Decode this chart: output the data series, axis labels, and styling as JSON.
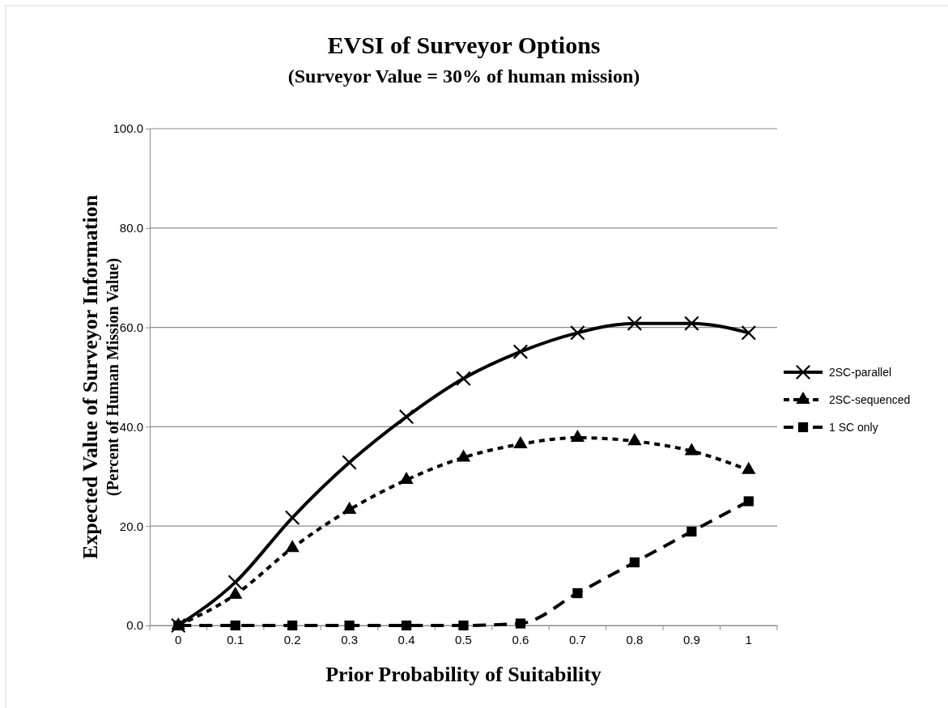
{
  "chart_data": {
    "type": "line",
    "title": "EVSI of Surveyor Options",
    "subtitle": "(Surveyor Value = 30% of human mission)",
    "xlabel": "Prior Probability of Suitability",
    "ylabel": "Expected Value of Surveyor Information\n(Percent of Human Mission Value)",
    "categories": [
      "0",
      "0.1",
      "0.2",
      "0.3",
      "0.4",
      "0.5",
      "0.6",
      "0.7",
      "0.8",
      "0.9",
      "1"
    ],
    "series": [
      {
        "name": "2SC-parallel",
        "color": "#000000",
        "marker": "cross",
        "line_style": "solid",
        "values": [
          0,
          8.7,
          21.7,
          32.8,
          42.0,
          49.7,
          55.1,
          58.9,
          60.8,
          60.8,
          58.9
        ]
      },
      {
        "name": "2SC-sequenced",
        "color": "#000000",
        "marker": "triangle",
        "line_style": "dashed",
        "values": [
          0,
          6.2,
          15.6,
          23.3,
          29.3,
          33.8,
          36.5,
          37.8,
          37.1,
          35.1,
          31.3
        ]
      },
      {
        "name": "1 SC only",
        "color": "#000000",
        "marker": "square",
        "line_style": "dashed",
        "values": [
          0,
          0,
          0,
          0,
          0,
          0,
          0.4,
          6.5,
          12.7,
          18.9,
          25.0
        ]
      }
    ],
    "ylim": [
      0,
      100
    ],
    "yticks": [
      {
        "value": 0,
        "label": "0.0"
      },
      {
        "value": 20,
        "label": "20.0"
      },
      {
        "value": 40,
        "label": "40.0"
      },
      {
        "value": 60,
        "label": "60.0"
      },
      {
        "value": 80,
        "label": "80.0"
      },
      {
        "value": 100,
        "label": "100.0"
      }
    ],
    "grid": "y",
    "legend": "right"
  }
}
